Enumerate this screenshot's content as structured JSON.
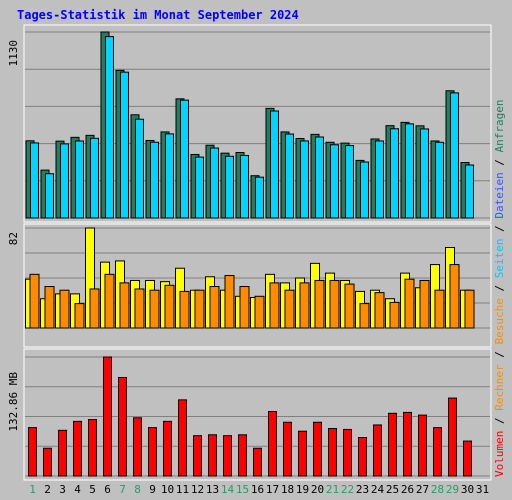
{
  "chart_data": {
    "type": "bar",
    "title": "Tages-Statistik im Monat September 2024",
    "categories": [
      "1",
      "2",
      "3",
      "4",
      "5",
      "6",
      "7",
      "8",
      "9",
      "10",
      "11",
      "12",
      "13",
      "14",
      "15",
      "16",
      "17",
      "18",
      "19",
      "20",
      "21",
      "22",
      "23",
      "24",
      "25",
      "26",
      "27",
      "28",
      "29",
      "30",
      "31"
    ],
    "weekend_days": [
      "1",
      "7",
      "8",
      "14",
      "15",
      "21",
      "22",
      "28",
      "29"
    ],
    "grid": true,
    "panels": [
      {
        "id": "top",
        "ylabel_value": "1130",
        "ylim": [
          0,
          1130
        ],
        "series": [
          {
            "name": "Anfragen",
            "color": "#1f7f5f",
            "values": [
              469,
              291,
              467,
              490,
              502,
              1130,
              897,
              627,
              471,
              523,
              724,
              386,
              442,
              394,
              398,
              257,
              666,
              523,
              483,
              508,
              460,
              455,
              350,
              480,
              561,
              581,
              560,
              468,
              773,
              337,
              0
            ]
          },
          {
            "name": "Dateien",
            "color": "#00d4ff",
            "values": [
              456,
              269,
              450,
              468,
              484,
              1102,
              886,
              600,
              460,
              511,
              716,
              370,
              425,
              375,
              380,
              248,
              650,
              510,
              468,
              492,
              445,
              440,
              340,
              468,
              542,
              572,
              541,
              460,
              760,
              322,
              0
            ]
          }
        ]
      },
      {
        "id": "middle",
        "ylabel_value": "82",
        "ylim": [
          0,
          82
        ],
        "series": [
          {
            "name": "Seiten",
            "color": "#ffff00",
            "values": [
              40,
              24,
              28,
              28,
              82,
              54,
              55,
              39,
              39,
              38,
              49,
              31,
              42,
              31,
              26,
              25,
              44,
              37,
              41,
              53,
              45,
              39,
              30,
              31,
              24,
              45,
              33,
              52,
              66,
              31,
              0
            ]
          },
          {
            "name": "Besuche",
            "color": "#ff8c00",
            "values": [
              44,
              34,
              31,
              20,
              32,
              44,
              37,
              32,
              31,
              35,
              30,
              31,
              34,
              43,
              34,
              26,
              37,
              31,
              37,
              39,
              39,
              36,
              20,
              29,
              21,
              40,
              39,
              31,
              52,
              31,
              0
            ]
          }
        ]
      },
      {
        "id": "bottom",
        "ylabel_value": "132.86 MB",
        "ylim": [
          0,
          132.86
        ],
        "series": [
          {
            "name": "Volumen",
            "color": "#ff0000",
            "values": [
              54,
              31,
              51,
              61,
              63,
              132.86,
              110,
              65,
              54,
              61,
              85,
              45,
              46,
              45,
              46,
              31,
              72,
              60,
              50,
              60,
              53,
              52,
              43,
              57,
              70,
              71,
              68,
              54,
              87,
              39,
              0
            ]
          }
        ]
      }
    ],
    "legend": {
      "placement": "right",
      "entries": [
        {
          "label": "Volumen",
          "color": "#ff0000"
        },
        {
          "label": "Rechner",
          "color": "#ff8c00"
        },
        {
          "label": "Besuche",
          "color": "#ff8c00"
        },
        {
          "label": "Seiten",
          "color": "#00c8ff"
        },
        {
          "label": "Dateien",
          "color": "#2a5cff"
        },
        {
          "label": "Anfragen",
          "color": "#1f7f5f"
        }
      ],
      "separator": " / "
    },
    "colors": {
      "background": "#c0c0c0",
      "title": "#0000ff",
      "weekend_label": "#2a9a6a",
      "weekday_label": "#000000",
      "grid": "#808080"
    }
  }
}
